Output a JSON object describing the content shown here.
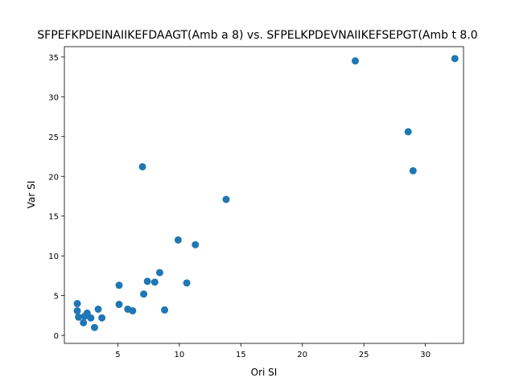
{
  "chart_data": {
    "type": "scatter",
    "title": "SFPEFKPDEINAIIKEFDAAGT(Amb a 8) vs. SFPELKPDEVNAIIKEFSEPGT(Amb t 8.0",
    "xlabel": "Ori SI",
    "ylabel": "Var SI",
    "xlim": [
      0.65,
      33.1
    ],
    "ylim": [
      -1.0,
      36.3
    ],
    "xticks": [
      5,
      10,
      15,
      20,
      25,
      30
    ],
    "yticks": [
      0,
      5,
      10,
      15,
      20,
      25,
      30,
      35
    ],
    "marker_color": "#1f77b4",
    "grid": false,
    "points": [
      {
        "x": 1.7,
        "y": 4.0
      },
      {
        "x": 1.7,
        "y": 3.1
      },
      {
        "x": 1.8,
        "y": 2.3
      },
      {
        "x": 2.2,
        "y": 1.6
      },
      {
        "x": 2.3,
        "y": 2.4
      },
      {
        "x": 2.5,
        "y": 2.8
      },
      {
        "x": 2.8,
        "y": 2.2
      },
      {
        "x": 3.1,
        "y": 1.0
      },
      {
        "x": 3.4,
        "y": 3.3
      },
      {
        "x": 3.7,
        "y": 2.2
      },
      {
        "x": 5.1,
        "y": 6.3
      },
      {
        "x": 5.1,
        "y": 3.9
      },
      {
        "x": 5.8,
        "y": 3.3
      },
      {
        "x": 6.2,
        "y": 3.1
      },
      {
        "x": 7.0,
        "y": 21.2
      },
      {
        "x": 7.1,
        "y": 5.2
      },
      {
        "x": 7.4,
        "y": 6.8
      },
      {
        "x": 8.0,
        "y": 6.7
      },
      {
        "x": 8.4,
        "y": 7.9
      },
      {
        "x": 8.8,
        "y": 3.2
      },
      {
        "x": 9.9,
        "y": 12.0
      },
      {
        "x": 10.6,
        "y": 6.6
      },
      {
        "x": 11.3,
        "y": 11.4
      },
      {
        "x": 13.8,
        "y": 17.1
      },
      {
        "x": 24.3,
        "y": 34.5
      },
      {
        "x": 28.6,
        "y": 25.6
      },
      {
        "x": 29.0,
        "y": 20.7
      },
      {
        "x": 32.4,
        "y": 34.8
      }
    ]
  }
}
